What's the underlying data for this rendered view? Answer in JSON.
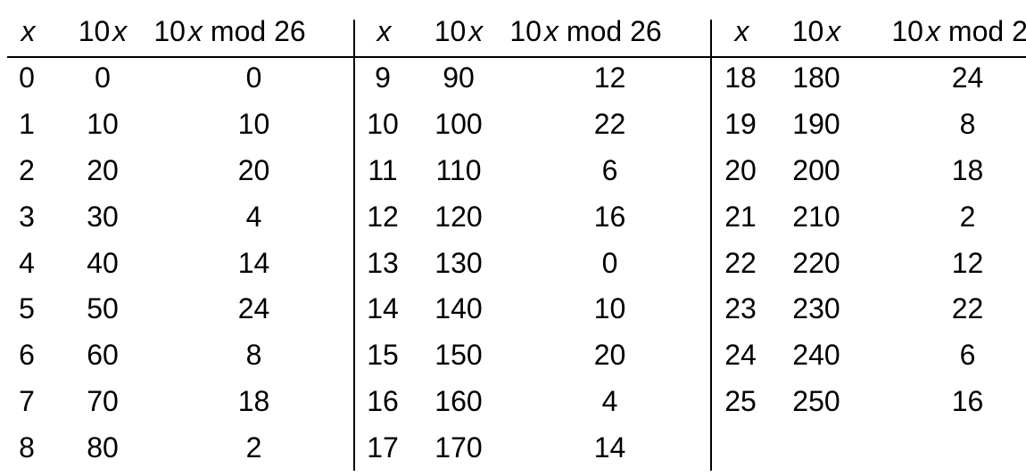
{
  "page": {
    "background": "#ffffff",
    "text_color": "#000000",
    "rule_color": "#000000"
  },
  "table": {
    "description_note": "three side-by-side groups sharing identical column headers",
    "header": {
      "x_var": "x",
      "coef": "10",
      "mod_suffix": "mod 26"
    },
    "groups": [
      {
        "rows": [
          [
            "0",
            "0",
            "0"
          ],
          [
            "1",
            "10",
            "10"
          ],
          [
            "2",
            "20",
            "20"
          ],
          [
            "3",
            "30",
            "4"
          ],
          [
            "4",
            "40",
            "14"
          ],
          [
            "5",
            "50",
            "24"
          ],
          [
            "6",
            "60",
            "8"
          ],
          [
            "7",
            "70",
            "18"
          ],
          [
            "8",
            "80",
            "2"
          ]
        ]
      },
      {
        "rows": [
          [
            "9",
            "90",
            "12"
          ],
          [
            "10",
            "100",
            "22"
          ],
          [
            "11",
            "110",
            "6"
          ],
          [
            "12",
            "120",
            "16"
          ],
          [
            "13",
            "130",
            "0"
          ],
          [
            "14",
            "140",
            "10"
          ],
          [
            "15",
            "150",
            "20"
          ],
          [
            "16",
            "160",
            "4"
          ],
          [
            "17",
            "170",
            "14"
          ]
        ]
      },
      {
        "rows": [
          [
            "18",
            "180",
            "24"
          ],
          [
            "19",
            "190",
            "8"
          ],
          [
            "20",
            "200",
            "18"
          ],
          [
            "21",
            "210",
            "2"
          ],
          [
            "22",
            "220",
            "12"
          ],
          [
            "23",
            "230",
            "22"
          ],
          [
            "24",
            "240",
            "6"
          ],
          [
            "25",
            "250",
            "16"
          ]
        ]
      }
    ]
  }
}
